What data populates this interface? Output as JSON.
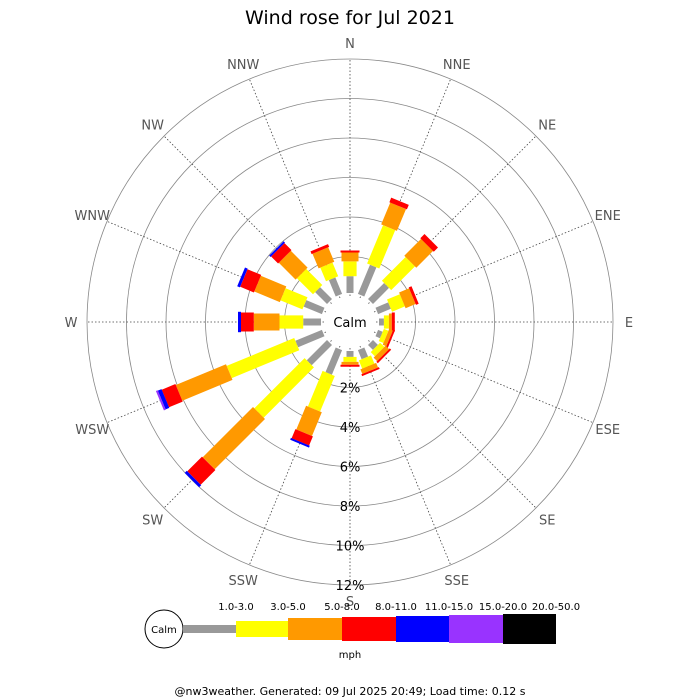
{
  "chart_data": {
    "type": "wind_rose",
    "title": "Wind rose for Jul 2021",
    "directions": [
      "N",
      "NNE",
      "NE",
      "ENE",
      "E",
      "ESE",
      "SE",
      "SSE",
      "S",
      "SSW",
      "SW",
      "WSW",
      "W",
      "WNW",
      "NW",
      "NNW"
    ],
    "radial_ticks": [
      "2%",
      "4%",
      "6%",
      "8%",
      "10%",
      "12%"
    ],
    "radial_tick_values": [
      2,
      4,
      6,
      8,
      10,
      12
    ],
    "radial_max": 12,
    "calm_label": "Calm",
    "unit_label": "mph",
    "bins": [
      {
        "label": "1.0-3.0",
        "color": "#999999"
      },
      {
        "label": "3.0-5.0",
        "color": "#ffff00"
      },
      {
        "label": "5.0-8.0",
        "color": "#ff9900"
      },
      {
        "label": "8.0-11.0",
        "color": "#ff0000"
      },
      {
        "label": "11.0-15.0",
        "color": "#0000ff"
      },
      {
        "label": "15.0-20.0",
        "color": "#9933ff"
      },
      {
        "label": "20.0-50.0",
        "color": "#000000"
      }
    ],
    "values_percent": {
      "N": [
        0.85,
        0.75,
        0.45,
        0.1,
        0.0,
        0.0,
        0.0
      ],
      "NNE": [
        1.6,
        2.1,
        1.2,
        0.25,
        0.0,
        0.0,
        0.0
      ],
      "NE": [
        1.15,
        1.7,
        1.2,
        0.3,
        0.0,
        0.0,
        0.0
      ],
      "ENE": [
        0.7,
        0.7,
        0.55,
        0.15,
        0.0,
        0.0,
        0.0
      ],
      "E": [
        0.25,
        0.25,
        0.15,
        0.15,
        0.0,
        0.0,
        0.0
      ],
      "ESE": [
        0.25,
        0.25,
        0.2,
        0.1,
        0.0,
        0.0,
        0.0
      ],
      "SE": [
        0.35,
        0.3,
        0.25,
        0.1,
        0.0,
        0.0,
        0.0
      ],
      "SSE": [
        0.5,
        0.45,
        0.25,
        0.1,
        0.0,
        0.0,
        0.0
      ],
      "S": [
        0.3,
        0.25,
        0.15,
        0.1,
        0.0,
        0.0,
        0.0
      ],
      "SSW": [
        1.35,
        1.95,
        1.3,
        0.5,
        0.1,
        0.0,
        0.0
      ],
      "SW": [
        1.45,
        3.6,
        3.6,
        1.05,
        0.15,
        0.0,
        0.0
      ],
      "WSW": [
        1.45,
        3.7,
        2.75,
        0.75,
        0.2,
        0.1,
        0.0
      ],
      "W": [
        0.9,
        1.2,
        1.3,
        0.65,
        0.15,
        0.0,
        0.0
      ],
      "WNW": [
        1.0,
        1.2,
        1.4,
        0.75,
        0.15,
        0.0,
        0.0
      ],
      "NW": [
        0.85,
        1.15,
        1.2,
        0.5,
        0.1,
        0.0,
        0.0
      ],
      "NNW": [
        0.9,
        0.75,
        0.8,
        0.15,
        0.0,
        0.0,
        0.0
      ]
    }
  },
  "footer": "@nw3weather. Generated: 09 Jul 2025 20:49; Load time: 0.12 s"
}
